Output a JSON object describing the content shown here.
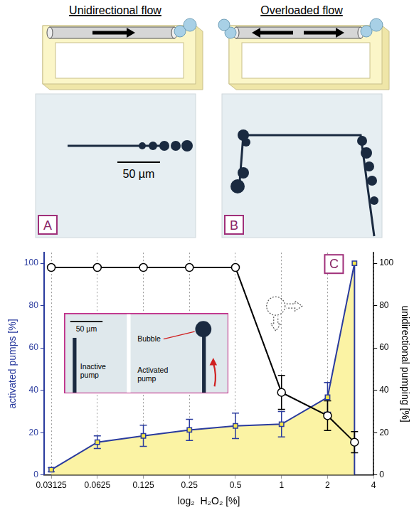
{
  "panel_A": {
    "title": "Unidirectional flow",
    "letter": "A",
    "scale_bar": "50 µm"
  },
  "panel_B": {
    "title": "Overloaded flow",
    "letter": "B"
  },
  "chart_data": {
    "type": "line",
    "letter": "C",
    "x_label": "log₂  H₂O₂ [%]",
    "y_label": "activated pumps [%]",
    "y2_label": "unidirectional pumping [%]",
    "log": "x",
    "grid": "x",
    "xlim": [
      0.028,
      4
    ],
    "xticks": [
      0.03125,
      0.0625,
      0.125,
      0.25,
      0.5,
      1,
      2,
      4
    ],
    "ylim": [
      0,
      105
    ],
    "yticks": [
      0,
      20,
      40,
      60,
      80,
      100
    ],
    "y2lim": [
      0,
      105
    ],
    "y2ticks": [
      0,
      20,
      40,
      60,
      80,
      100
    ],
    "x": [
      0.03125,
      0.0625,
      0.125,
      0.25,
      0.5,
      1,
      2,
      3
    ],
    "series": [
      {
        "type": "area",
        "color": "#2a3b9e",
        "marker": "square",
        "line_style": "solid",
        "values": [
          2.5,
          15.5,
          18.5,
          21.3,
          23.2,
          24,
          36.7,
          100
        ],
        "errors": [
          1,
          3,
          5,
          5,
          6,
          6,
          7,
          0
        ]
      },
      {
        "type": "line",
        "axis": "y2",
        "color": "#000000",
        "marker": "circle",
        "line_style": "solid",
        "values": [
          98,
          98,
          98,
          98,
          98,
          39,
          28,
          15.5
        ],
        "errors": [
          0,
          0,
          0,
          0,
          0,
          8,
          7,
          5
        ]
      }
    ],
    "inset": {
      "scale_bar": "50 µm",
      "inactive": "Inactive pump",
      "bubble": "Bubble",
      "active": "Activated pump"
    }
  }
}
